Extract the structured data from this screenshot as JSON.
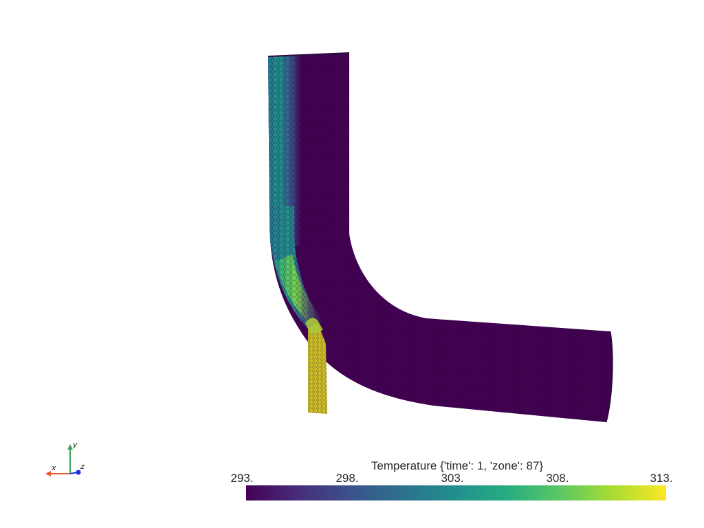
{
  "render": {
    "scalar_name": "Temperature {'time': 1, 'zone': 87}",
    "colormap": "viridis",
    "range": [
      293,
      313
    ]
  },
  "colorbar": {
    "title": "Temperature {'time': 1, 'zone': 87}",
    "ticks": [
      "293.",
      "298.",
      "303.",
      "308.",
      "313."
    ],
    "colors": [
      "#440154",
      "#3b528b",
      "#21908d",
      "#5dc863",
      "#fde725"
    ]
  },
  "axes": {
    "x_label": "X",
    "y_label": "Y",
    "z_label": "Z",
    "x_color": "#e8572a",
    "y_color": "#3aa655",
    "z_color": "#1a33d9"
  },
  "mesh": {
    "main_color": "#440154",
    "inlet_color": "#cdbd2a"
  }
}
